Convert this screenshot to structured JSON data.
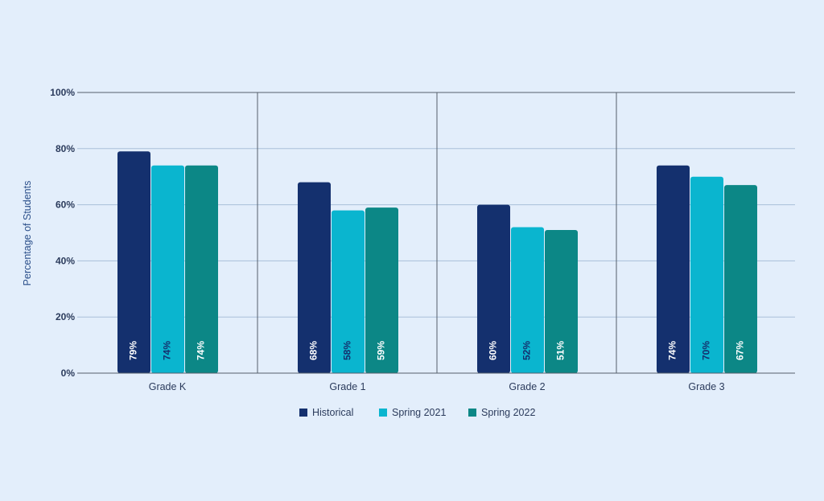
{
  "chart_data": {
    "type": "bar",
    "ylabel": "Percentage of Students",
    "ylim": [
      0,
      100
    ],
    "yticks": [
      0,
      20,
      40,
      60,
      80,
      100
    ],
    "tick_suffix": "%",
    "categories": [
      "Grade K",
      "Grade 1",
      "Grade 2",
      "Grade 3"
    ],
    "series": [
      {
        "name": "Historical",
        "color": "#14306e",
        "label_color": "#ffffff",
        "values": [
          79,
          68,
          60,
          74
        ]
      },
      {
        "name": "Spring 2021",
        "color": "#0ab5cf",
        "label_color": "#14306e",
        "values": [
          74,
          58,
          52,
          70
        ]
      },
      {
        "name": "Spring 2022",
        "color": "#0c8786",
        "label_color": "#ffffff",
        "values": [
          74,
          59,
          51,
          67
        ]
      }
    ],
    "grid": true,
    "legend_position": "bottom-center",
    "colors": {
      "background": "#e3eefb",
      "grid": "#a9bfd9",
      "axis": "#555f6b",
      "separator": "#555f6b"
    }
  }
}
